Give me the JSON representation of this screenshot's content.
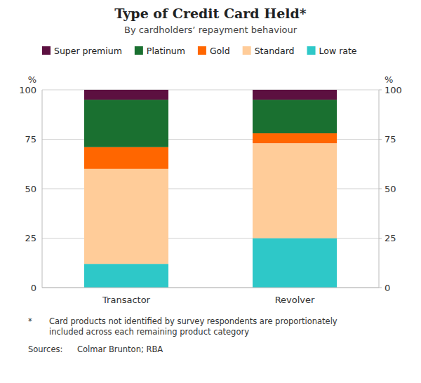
{
  "chart_data": {
    "type": "bar",
    "stacked": true,
    "title": "Type of Credit Card Held*",
    "subtitle": "By cardholders’ repayment behaviour",
    "ylabel": "%",
    "y2label": "%",
    "categories": [
      "Transactor",
      "Revolver"
    ],
    "series": [
      {
        "name": "Low rate",
        "color": "#2EC8C8",
        "values": [
          12,
          25
        ]
      },
      {
        "name": "Standard",
        "color": "#FFCC99",
        "values": [
          48,
          48
        ]
      },
      {
        "name": "Gold",
        "color": "#FF6600",
        "values": [
          11,
          5
        ]
      },
      {
        "name": "Platinum",
        "color": "#1A7030",
        "values": [
          24,
          17
        ]
      },
      {
        "name": "Super premium",
        "color": "#5C1040",
        "values": [
          5,
          5
        ]
      }
    ],
    "ylim": [
      0,
      100
    ],
    "yticks": [
      0,
      25,
      50,
      75,
      100
    ],
    "y2lim": [
      0,
      100
    ],
    "y2ticks": [
      0,
      25,
      50,
      75,
      100
    ],
    "grid": true,
    "legend": "top",
    "annotations": [
      "*",
      "Card products not identified by survey respondents are proportionately\nincluded across each remaining product category",
      "Sources:",
      "Colmar Brunton; RBA"
    ]
  }
}
